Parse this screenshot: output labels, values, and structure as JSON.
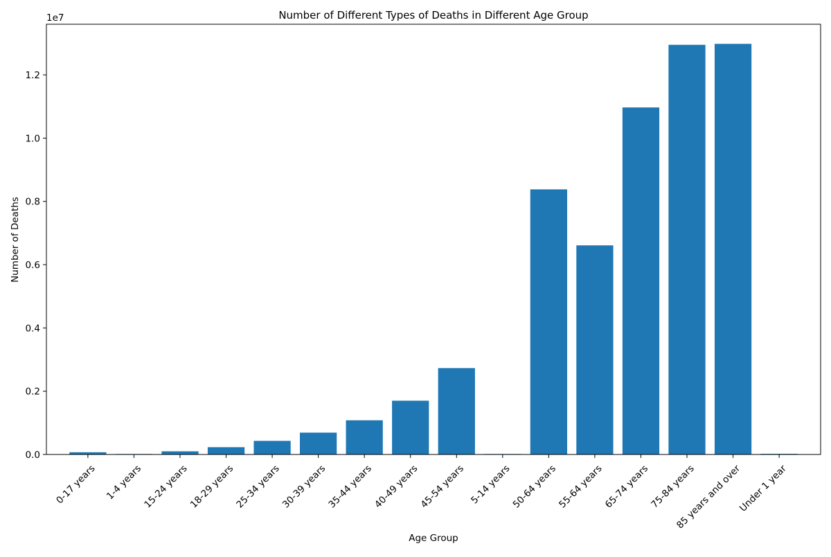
{
  "chart_data": {
    "type": "bar",
    "title": "Number of Different Types of Deaths in Different Age Group",
    "xlabel": "Age Group",
    "ylabel": "Number of Deaths",
    "y_offset_text": "1e7",
    "bar_color": "#1f77b4",
    "grid": false,
    "legend": "none",
    "ylim": [
      0,
      13600000
    ],
    "y_ticks": [
      0,
      2000000,
      4000000,
      6000000,
      8000000,
      10000000,
      12000000
    ],
    "y_tick_labels": [
      "0.0",
      "0.2",
      "0.4",
      "0.6",
      "0.8",
      "1.0",
      "1.2"
    ],
    "categories": [
      "0-17 years",
      "1-4 years",
      "15-24 years",
      "18-29 years",
      "25-34 years",
      "30-39 years",
      "35-44 years",
      "40-49 years",
      "45-54 years",
      "5-14 years",
      "50-64 years",
      "55-64 years",
      "65-74 years",
      "75-84 years",
      "85 years and over",
      "Under 1 year"
    ],
    "values": [
      70000,
      15000,
      100000,
      230000,
      430000,
      690000,
      1080000,
      1700000,
      2730000,
      15000,
      8380000,
      6610000,
      10970000,
      12950000,
      12980000,
      20000
    ]
  }
}
